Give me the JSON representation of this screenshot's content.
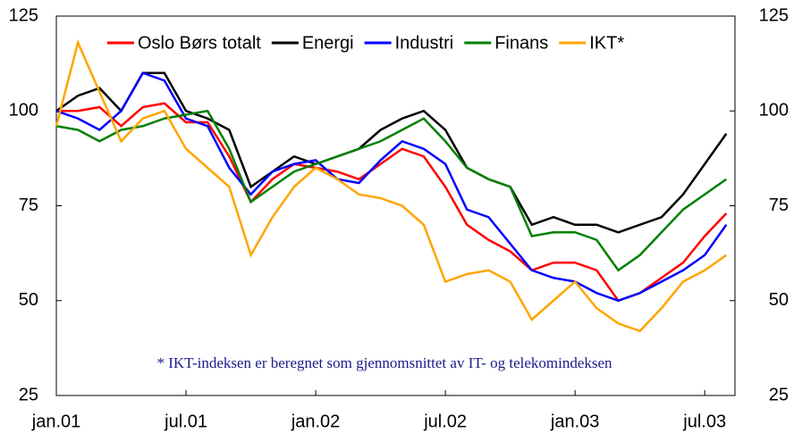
{
  "chart_data": {
    "type": "line",
    "annotation": "* IKT-indeksen er beregnet som gjennomsnittet av IT- og telekomindeksen",
    "x": [
      0,
      1,
      2,
      3,
      4,
      5,
      6,
      7,
      8,
      9,
      10,
      11,
      12,
      13,
      14,
      15,
      16,
      17,
      18,
      19,
      20,
      21,
      22,
      23,
      24,
      25,
      26,
      27,
      28,
      29,
      30,
      31
    ],
    "xlim": [
      0,
      31.4
    ],
    "xticks": [
      {
        "value": 0,
        "label": "jan.01"
      },
      {
        "value": 6,
        "label": "jul.01"
      },
      {
        "value": 12,
        "label": "jan.02"
      },
      {
        "value": 18,
        "label": "jul.02"
      },
      {
        "value": 24,
        "label": "jan.03"
      },
      {
        "value": 30,
        "label": "jul.03"
      }
    ],
    "ylim": [
      25,
      125
    ],
    "yticks": [
      25,
      50,
      75,
      100,
      125
    ],
    "y2lim": [
      25,
      125
    ],
    "y2ticks": [
      25,
      50,
      75,
      100,
      125
    ],
    "series": [
      {
        "name": "Oslo Børs totalt",
        "color": "#ff0000",
        "values": [
          100,
          100,
          101,
          96,
          101,
          102,
          97,
          97,
          88,
          76,
          82,
          86,
          85,
          84,
          82,
          86,
          90,
          88,
          80,
          70,
          66,
          63,
          58,
          60,
          60,
          58,
          50,
          52,
          56,
          60,
          67,
          73
        ]
      },
      {
        "name": "Energi",
        "color": "#000000",
        "values": [
          100,
          104,
          106,
          100,
          110,
          110,
          100,
          98,
          95,
          80,
          84,
          88,
          86,
          88,
          90,
          95,
          98,
          100,
          95,
          85,
          82,
          80,
          70,
          72,
          70,
          70,
          68,
          70,
          72,
          78,
          86,
          94
        ]
      },
      {
        "name": "Industri",
        "color": "#0000ff",
        "values": [
          100,
          98,
          95,
          100,
          110,
          108,
          98,
          96,
          85,
          78,
          84,
          86,
          87,
          82,
          81,
          87,
          92,
          90,
          86,
          74,
          72,
          65,
          58,
          56,
          55,
          52,
          50,
          52,
          55,
          58,
          62,
          70
        ]
      },
      {
        "name": "Finans",
        "color": "#008000",
        "values": [
          96,
          95,
          92,
          95,
          96,
          98,
          99,
          100,
          90,
          76,
          80,
          84,
          86,
          88,
          90,
          92,
          95,
          98,
          92,
          85,
          82,
          80,
          67,
          68,
          68,
          66,
          58,
          62,
          68,
          74,
          78,
          82
        ]
      },
      {
        "name": "IKT*",
        "color": "#ffa500",
        "values": [
          96,
          118,
          105,
          92,
          98,
          100,
          90,
          85,
          80,
          62,
          72,
          80,
          85,
          82,
          78,
          77,
          75,
          70,
          55,
          57,
          58,
          55,
          45,
          50,
          55,
          48,
          44,
          42,
          48,
          55,
          58,
          62
        ]
      }
    ]
  }
}
